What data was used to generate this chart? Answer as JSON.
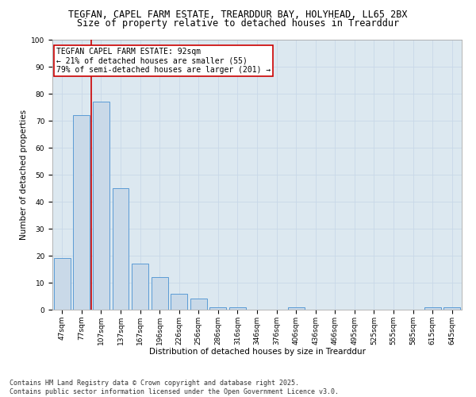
{
  "title_line1": "TEGFAN, CAPEL FARM ESTATE, TREARDDUR BAY, HOLYHEAD, LL65 2BX",
  "title_line2": "Size of property relative to detached houses in Trearddur",
  "xlabel": "Distribution of detached houses by size in Trearddur",
  "ylabel": "Number of detached properties",
  "categories": [
    "47sqm",
    "77sqm",
    "107sqm",
    "137sqm",
    "167sqm",
    "196sqm",
    "226sqm",
    "256sqm",
    "286sqm",
    "316sqm",
    "346sqm",
    "376sqm",
    "406sqm",
    "436sqm",
    "466sqm",
    "495sqm",
    "525sqm",
    "555sqm",
    "585sqm",
    "615sqm",
    "645sqm"
  ],
  "values": [
    19,
    72,
    77,
    45,
    17,
    12,
    6,
    4,
    1,
    1,
    0,
    0,
    1,
    0,
    0,
    0,
    0,
    0,
    0,
    1,
    1
  ],
  "bar_color": "#c9d9e8",
  "bar_edge_color": "#5b9bd5",
  "vline_color": "#cc0000",
  "annotation_text": "TEGFAN CAPEL FARM ESTATE: 92sqm\n← 21% of detached houses are smaller (55)\n79% of semi-detached houses are larger (201) →",
  "annotation_box_color": "#ffffff",
  "annotation_box_edge_color": "#cc0000",
  "ylim": [
    0,
    100
  ],
  "yticks": [
    0,
    10,
    20,
    30,
    40,
    50,
    60,
    70,
    80,
    90,
    100
  ],
  "grid_color": "#c8d8e8",
  "background_color": "#dce8f0",
  "footer_line1": "Contains HM Land Registry data © Crown copyright and database right 2025.",
  "footer_line2": "Contains public sector information licensed under the Open Government Licence v3.0.",
  "title1_fontsize": 8.5,
  "title2_fontsize": 8.5,
  "axis_label_fontsize": 7.5,
  "tick_fontsize": 6.5,
  "annotation_fontsize": 7,
  "footer_fontsize": 6
}
